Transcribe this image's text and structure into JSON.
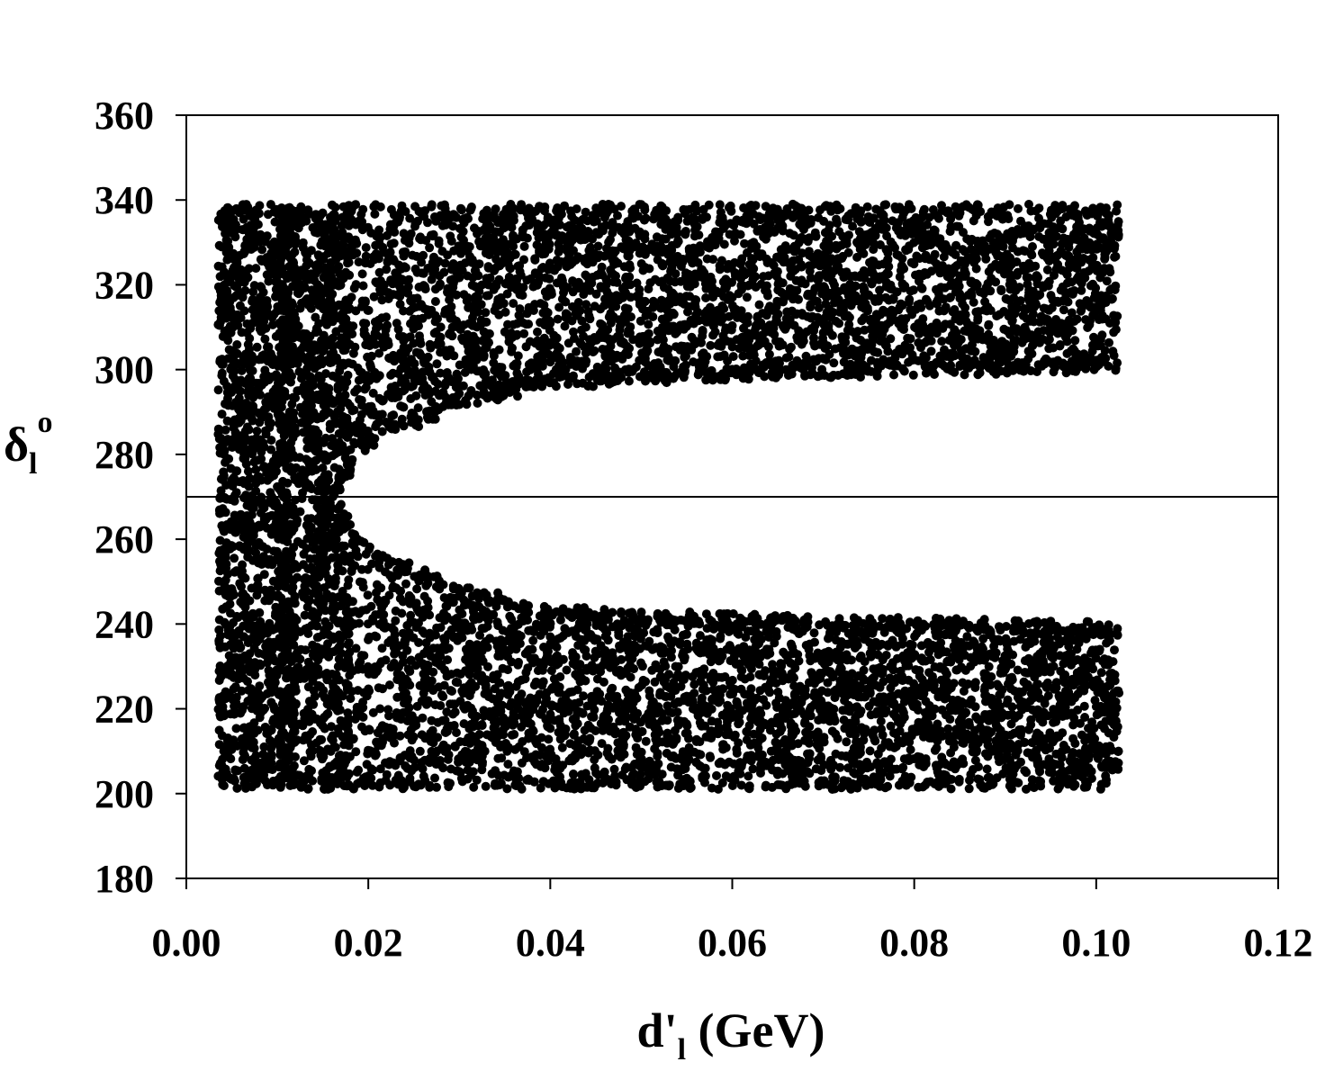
{
  "chart_data": {
    "type": "scatter",
    "xlabel": {
      "main": "d'",
      "sub": "l",
      "unit": " (GeV)"
    },
    "ylabel": {
      "main": "δ",
      "sub": "l",
      "sup": "o"
    },
    "xlim": [
      0.0,
      0.12
    ],
    "ylim": [
      180,
      360
    ],
    "x_ticks": [
      "0.00",
      "0.02",
      "0.04",
      "0.06",
      "0.08",
      "0.10",
      "0.12"
    ],
    "y_ticks": [
      "180",
      "200",
      "220",
      "240",
      "260",
      "280",
      "300",
      "320",
      "340",
      "360"
    ],
    "reference_line_y": 270,
    "marker_color": "#000000",
    "grid": false,
    "legend": "none",
    "regions": [
      {
        "name": "upper band",
        "x_range": [
          0.0035,
          0.1025
        ],
        "y_inner_at_x": [
          [
            0.016,
            270
          ],
          [
            0.02,
            283
          ],
          [
            0.03,
            292
          ],
          [
            0.04,
            297
          ],
          [
            0.06,
            299
          ],
          [
            0.08,
            300
          ],
          [
            0.1025,
            301
          ]
        ],
        "y_outer": 339
      },
      {
        "name": "lower band",
        "x_range": [
          0.0035,
          0.1025
        ],
        "y_inner_at_x": [
          [
            0.016,
            270
          ],
          [
            0.02,
            257
          ],
          [
            0.03,
            248
          ],
          [
            0.04,
            243
          ],
          [
            0.06,
            241
          ],
          [
            0.08,
            240
          ],
          [
            0.1025,
            239
          ]
        ],
        "y_outer": 201
      },
      {
        "name": "vertical strip",
        "x_range": [
          0.0035,
          0.012
        ],
        "y_range": [
          201,
          339
        ]
      }
    ]
  }
}
